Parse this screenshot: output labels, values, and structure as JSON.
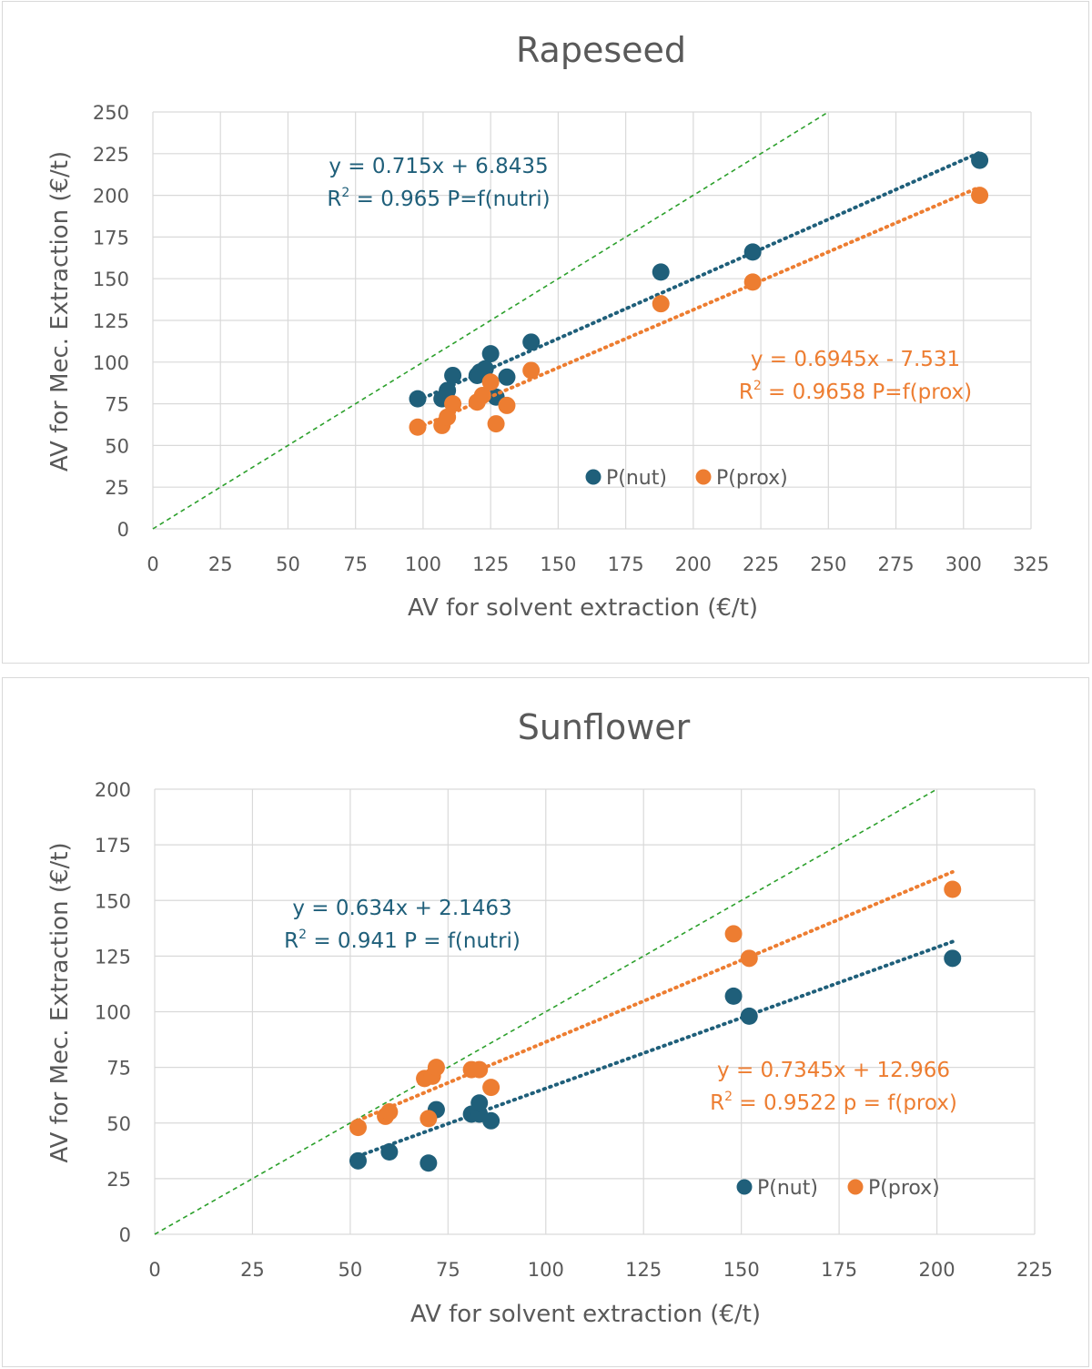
{
  "chart_data": [
    {
      "type": "scatter",
      "title": "Rapeseed",
      "xlabel": "AV for solvent extraction (€/t)",
      "ylabel": "AV for Mec. Extraction (€/t)",
      "xlim": [
        0,
        325
      ],
      "ylim": [
        0,
        250
      ],
      "xticks": [
        "0",
        "25",
        "50",
        "75",
        "100",
        "125",
        "150",
        "175",
        "200",
        "225",
        "250",
        "275",
        "300",
        "325"
      ],
      "yticks": [
        "0",
        "25",
        "50",
        "75",
        "100",
        "125",
        "150",
        "175",
        "200",
        "225",
        "250"
      ],
      "grid": true,
      "legend_position": "inside-bottom-center",
      "reference_line": {
        "type": "y=x",
        "color": "#2ca02c"
      },
      "series": [
        {
          "name": "P(nut)",
          "color": "#1f5f7a",
          "points": [
            [
              98,
              78
            ],
            [
              107,
              78
            ],
            [
              109,
              83
            ],
            [
              111,
              92
            ],
            [
              120,
              92
            ],
            [
              121,
              94
            ],
            [
              123,
              96
            ],
            [
              125,
              105
            ],
            [
              127,
              79
            ],
            [
              131,
              91
            ],
            [
              140,
              112
            ],
            [
              188,
              154
            ],
            [
              222,
              166
            ],
            [
              306,
              221
            ]
          ],
          "trendline": {
            "slope": 0.715,
            "intercept": 6.8435,
            "x_range": [
              98,
              306
            ]
          },
          "equation": "y = 0.715x + 6.8435",
          "r2_label": "R",
          "r2_text": " = 0.965   P=f(nutri)"
        },
        {
          "name": "P(prox)",
          "color": "#ed7d31",
          "points": [
            [
              98,
              61
            ],
            [
              107,
              62
            ],
            [
              109,
              67
            ],
            [
              111,
              75
            ],
            [
              120,
              76
            ],
            [
              122,
              80
            ],
            [
              125,
              88
            ],
            [
              127,
              63
            ],
            [
              131,
              74
            ],
            [
              140,
              95
            ],
            [
              188,
              135
            ],
            [
              222,
              148
            ],
            [
              306,
              200
            ]
          ],
          "trendline": {
            "slope": 0.6945,
            "intercept": -7.531,
            "x_range": [
              98,
              306
            ]
          },
          "equation": "y = 0.6945x - 7.531",
          "r2_label": "R",
          "r2_text": " = 0.9658   P=f(prox)"
        }
      ]
    },
    {
      "type": "scatter",
      "title": "Sunflower",
      "xlabel": "AV for solvent extraction (€/t)",
      "ylabel": "AV for Mec. Extraction (€/t)",
      "xlim": [
        0,
        225
      ],
      "ylim": [
        0,
        200
      ],
      "xticks": [
        "0",
        "25",
        "50",
        "75",
        "100",
        "125",
        "150",
        "175",
        "200",
        "225"
      ],
      "yticks": [
        "0",
        "25",
        "50",
        "75",
        "100",
        "125",
        "150",
        "175",
        "200"
      ],
      "grid": true,
      "legend_position": "inside-bottom-right",
      "reference_line": {
        "type": "y=x",
        "color": "#2ca02c"
      },
      "series": [
        {
          "name": "P(nut)",
          "color": "#1f5f7a",
          "points": [
            [
              52,
              33
            ],
            [
              60,
              37
            ],
            [
              70,
              32
            ],
            [
              72,
              56
            ],
            [
              81,
              54
            ],
            [
              83,
              54
            ],
            [
              83,
              59
            ],
            [
              86,
              51
            ],
            [
              148,
              107
            ],
            [
              152,
              98
            ],
            [
              204,
              124
            ]
          ],
          "trendline": {
            "slope": 0.634,
            "intercept": 2.1463,
            "x_range": [
              52,
              204
            ]
          },
          "equation": "y = 0.634x + 2.1463",
          "r2_label": "R",
          "r2_text": " = 0.941  P = f(nutri)"
        },
        {
          "name": "P(prox)",
          "color": "#ed7d31",
          "points": [
            [
              52,
              48
            ],
            [
              59,
              53
            ],
            [
              60,
              55
            ],
            [
              69,
              70
            ],
            [
              70,
              52
            ],
            [
              71,
              71
            ],
            [
              72,
              75
            ],
            [
              81,
              74
            ],
            [
              83,
              74
            ],
            [
              86,
              66
            ],
            [
              148,
              135
            ],
            [
              152,
              124
            ],
            [
              204,
              155
            ]
          ],
          "trendline": {
            "slope": 0.7345,
            "intercept": 12.966,
            "x_range": [
              52,
              204
            ]
          },
          "equation": "y = 0.7345x + 12.966",
          "r2_label": "R",
          "r2_text": " = 0.9522  p = f(prox)"
        }
      ]
    }
  ]
}
